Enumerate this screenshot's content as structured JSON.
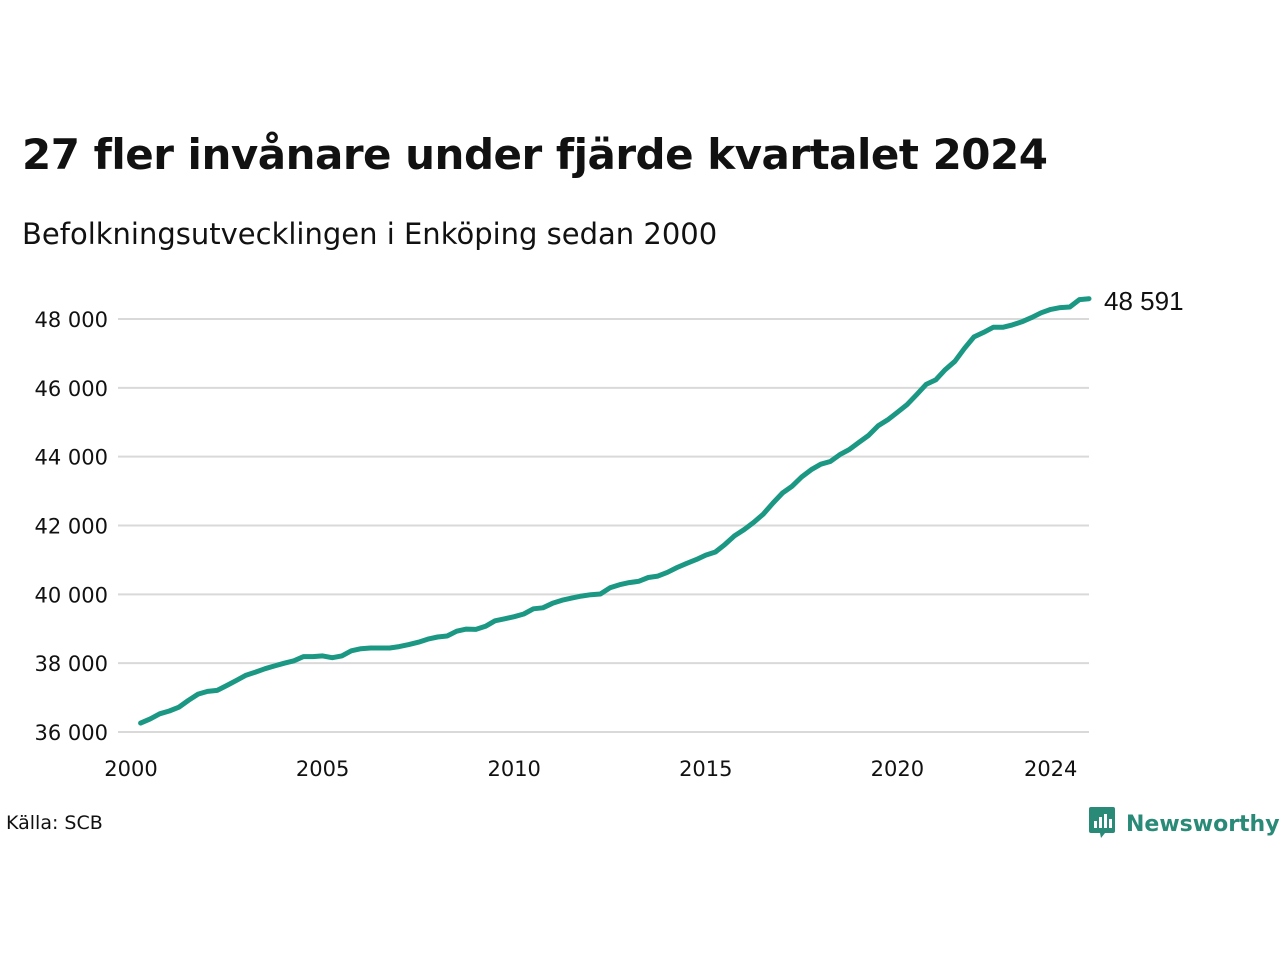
{
  "header": {
    "title": "27 fler invånare under fjärde kvartalet 2024",
    "subtitle": "Befolkningsutvecklingen i Enköping sedan 2000"
  },
  "footer": {
    "source": "Källa: SCB",
    "brand": "Newsworthy",
    "brand_icon": "newsworthy-logo-icon"
  },
  "colors": {
    "line": "#1a9884",
    "grid": "#d9d9d9",
    "text": "#111111",
    "brand": "#2a8a78"
  },
  "chart_data": {
    "type": "line",
    "title": "27 fler invånare under fjärde kvartalet 2024",
    "subtitle": "Befolkningsutvecklingen i Enköping sedan 2000",
    "xlabel": "",
    "ylabel": "",
    "xlim": [
      2000,
      2025
    ],
    "ylim": [
      36000,
      48700
    ],
    "x_ticks": [
      2000,
      2005,
      2010,
      2015,
      2020,
      2024
    ],
    "x_tick_labels": [
      "2000",
      "2005",
      "2010",
      "2015",
      "2020",
      "2024"
    ],
    "y_ticks": [
      36000,
      38000,
      40000,
      42000,
      44000,
      46000,
      48000
    ],
    "y_tick_labels": [
      "36 000",
      "38 000",
      "40 000",
      "42 000",
      "44 000",
      "46 000",
      "48 000"
    ],
    "grid": "horizontal",
    "end_label": "48 591",
    "series": [
      {
        "points": [
          [
            2000.25,
            36260
          ],
          [
            2000.5,
            36380
          ],
          [
            2000.75,
            36530
          ],
          [
            2001.0,
            36610
          ],
          [
            2001.25,
            36720
          ],
          [
            2001.5,
            36920
          ],
          [
            2001.75,
            37100
          ],
          [
            2002.0,
            37180
          ],
          [
            2002.25,
            37210
          ],
          [
            2002.5,
            37350
          ],
          [
            2002.75,
            37500
          ],
          [
            2003.0,
            37650
          ],
          [
            2003.25,
            37740
          ],
          [
            2003.5,
            37840
          ],
          [
            2003.75,
            37920
          ],
          [
            2004.0,
            38000
          ],
          [
            2004.25,
            38070
          ],
          [
            2004.5,
            38190
          ],
          [
            2004.75,
            38190
          ],
          [
            2005.0,
            38210
          ],
          [
            2005.25,
            38160
          ],
          [
            2005.5,
            38210
          ],
          [
            2005.75,
            38360
          ],
          [
            2006.0,
            38420
          ],
          [
            2006.25,
            38440
          ],
          [
            2006.5,
            38440
          ],
          [
            2006.75,
            38440
          ],
          [
            2007.0,
            38480
          ],
          [
            2007.25,
            38540
          ],
          [
            2007.5,
            38610
          ],
          [
            2007.75,
            38700
          ],
          [
            2008.0,
            38760
          ],
          [
            2008.25,
            38790
          ],
          [
            2008.5,
            38930
          ],
          [
            2008.75,
            38990
          ],
          [
            2009.0,
            38980
          ],
          [
            2009.25,
            39070
          ],
          [
            2009.5,
            39230
          ],
          [
            2009.75,
            39290
          ],
          [
            2010.0,
            39350
          ],
          [
            2010.25,
            39430
          ],
          [
            2010.5,
            39580
          ],
          [
            2010.75,
            39610
          ],
          [
            2011.0,
            39740
          ],
          [
            2011.25,
            39830
          ],
          [
            2011.5,
            39890
          ],
          [
            2011.75,
            39950
          ],
          [
            2012.0,
            39990
          ],
          [
            2012.25,
            40010
          ],
          [
            2012.5,
            40190
          ],
          [
            2012.75,
            40280
          ],
          [
            2013.0,
            40340
          ],
          [
            2013.25,
            40380
          ],
          [
            2013.5,
            40490
          ],
          [
            2013.75,
            40530
          ],
          [
            2014.0,
            40640
          ],
          [
            2014.25,
            40780
          ],
          [
            2014.5,
            40900
          ],
          [
            2014.75,
            41010
          ],
          [
            2015.0,
            41140
          ],
          [
            2015.25,
            41230
          ],
          [
            2015.5,
            41450
          ],
          [
            2015.75,
            41700
          ],
          [
            2016.0,
            41880
          ],
          [
            2016.25,
            42090
          ],
          [
            2016.5,
            42330
          ],
          [
            2016.75,
            42650
          ],
          [
            2017.0,
            42940
          ],
          [
            2017.25,
            43140
          ],
          [
            2017.5,
            43410
          ],
          [
            2017.75,
            43620
          ],
          [
            2018.0,
            43780
          ],
          [
            2018.25,
            43860
          ],
          [
            2018.5,
            44060
          ],
          [
            2018.75,
            44210
          ],
          [
            2019.0,
            44420
          ],
          [
            2019.25,
            44620
          ],
          [
            2019.5,
            44900
          ],
          [
            2019.75,
            45070
          ],
          [
            2020.0,
            45290
          ],
          [
            2020.25,
            45510
          ],
          [
            2020.5,
            45800
          ],
          [
            2020.75,
            46100
          ],
          [
            2021.0,
            46230
          ],
          [
            2021.25,
            46530
          ],
          [
            2021.5,
            46770
          ],
          [
            2021.75,
            47150
          ],
          [
            2022.0,
            47480
          ],
          [
            2022.25,
            47610
          ],
          [
            2022.5,
            47760
          ],
          [
            2022.75,
            47760
          ],
          [
            2023.0,
            47830
          ],
          [
            2023.25,
            47920
          ],
          [
            2023.5,
            48040
          ],
          [
            2023.75,
            48180
          ],
          [
            2024.0,
            48280
          ],
          [
            2024.25,
            48330
          ],
          [
            2024.5,
            48350
          ],
          [
            2024.75,
            48564
          ],
          [
            2025.0,
            48591
          ]
        ]
      }
    ]
  }
}
